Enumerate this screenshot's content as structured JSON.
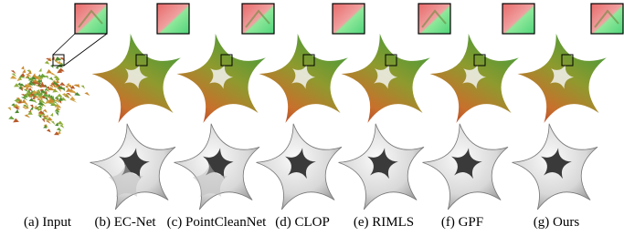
{
  "captions": [
    "(a) Input",
    "(b) EC-Net",
    "(c) PointCleanNet",
    "(d) CLOP",
    "(e) RIMLS",
    "(f) GPF",
    "(g) Ours"
  ]
}
